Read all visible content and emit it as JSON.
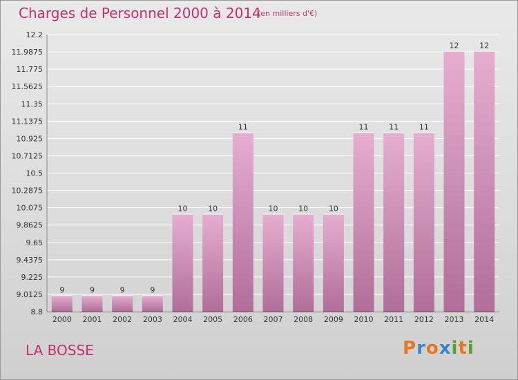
{
  "title": "Charges de Personnel 2000 à 2014",
  "subtitle": "(en milliers d'€)",
  "commune": "LA BOSSE",
  "logo": {
    "letters": [
      "P",
      "r",
      "o",
      "x",
      "i",
      "t",
      "i"
    ],
    "colors": [
      "#e8761e",
      "#3b86c8",
      "#e8761e",
      "#3b86c8",
      "#59a032",
      "#e8761e",
      "#59a032"
    ]
  },
  "colors": {
    "title": "#c0306e",
    "bar_top": "#e6aed0",
    "bar_bottom": "#b06e98"
  },
  "chart_data": {
    "type": "bar",
    "categories": [
      "2000",
      "2001",
      "2002",
      "2003",
      "2004",
      "2005",
      "2006",
      "2007",
      "2008",
      "2009",
      "2010",
      "2011",
      "2012",
      "2013",
      "2014"
    ],
    "values": [
      9,
      9,
      9,
      9,
      10,
      10,
      11,
      10,
      10,
      10,
      11,
      11,
      11,
      12,
      12
    ],
    "data_labels": [
      "9",
      "9",
      "9",
      "9",
      "10",
      "10",
      "11",
      "10",
      "10",
      "10",
      "11",
      "11",
      "11",
      "12",
      "12"
    ],
    "ylim": [
      8.8,
      12.2
    ],
    "yticks": [
      "8.8",
      "9.0125",
      "9.225",
      "9.4375",
      "9.65",
      "9.8625",
      "10.075",
      "10.2875",
      "10.5",
      "10.7125",
      "10.925",
      "11.1375",
      "11.35",
      "11.5625",
      "11.775",
      "11.9875",
      "12.2"
    ],
    "grid": true,
    "xlabel": "",
    "ylabel": ""
  }
}
